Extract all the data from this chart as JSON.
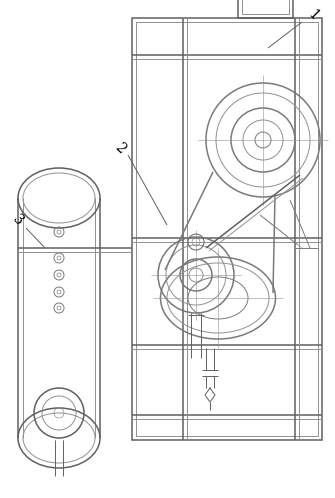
{
  "bg": "white",
  "lc": "#909090",
  "dc": "#606060",
  "mc": "#7a7a7a",
  "figsize": [
    3.35,
    4.98
  ],
  "dpi": 100,
  "label1": "1",
  "label2": "2",
  "label3": "3",
  "label_fontsize": 10
}
